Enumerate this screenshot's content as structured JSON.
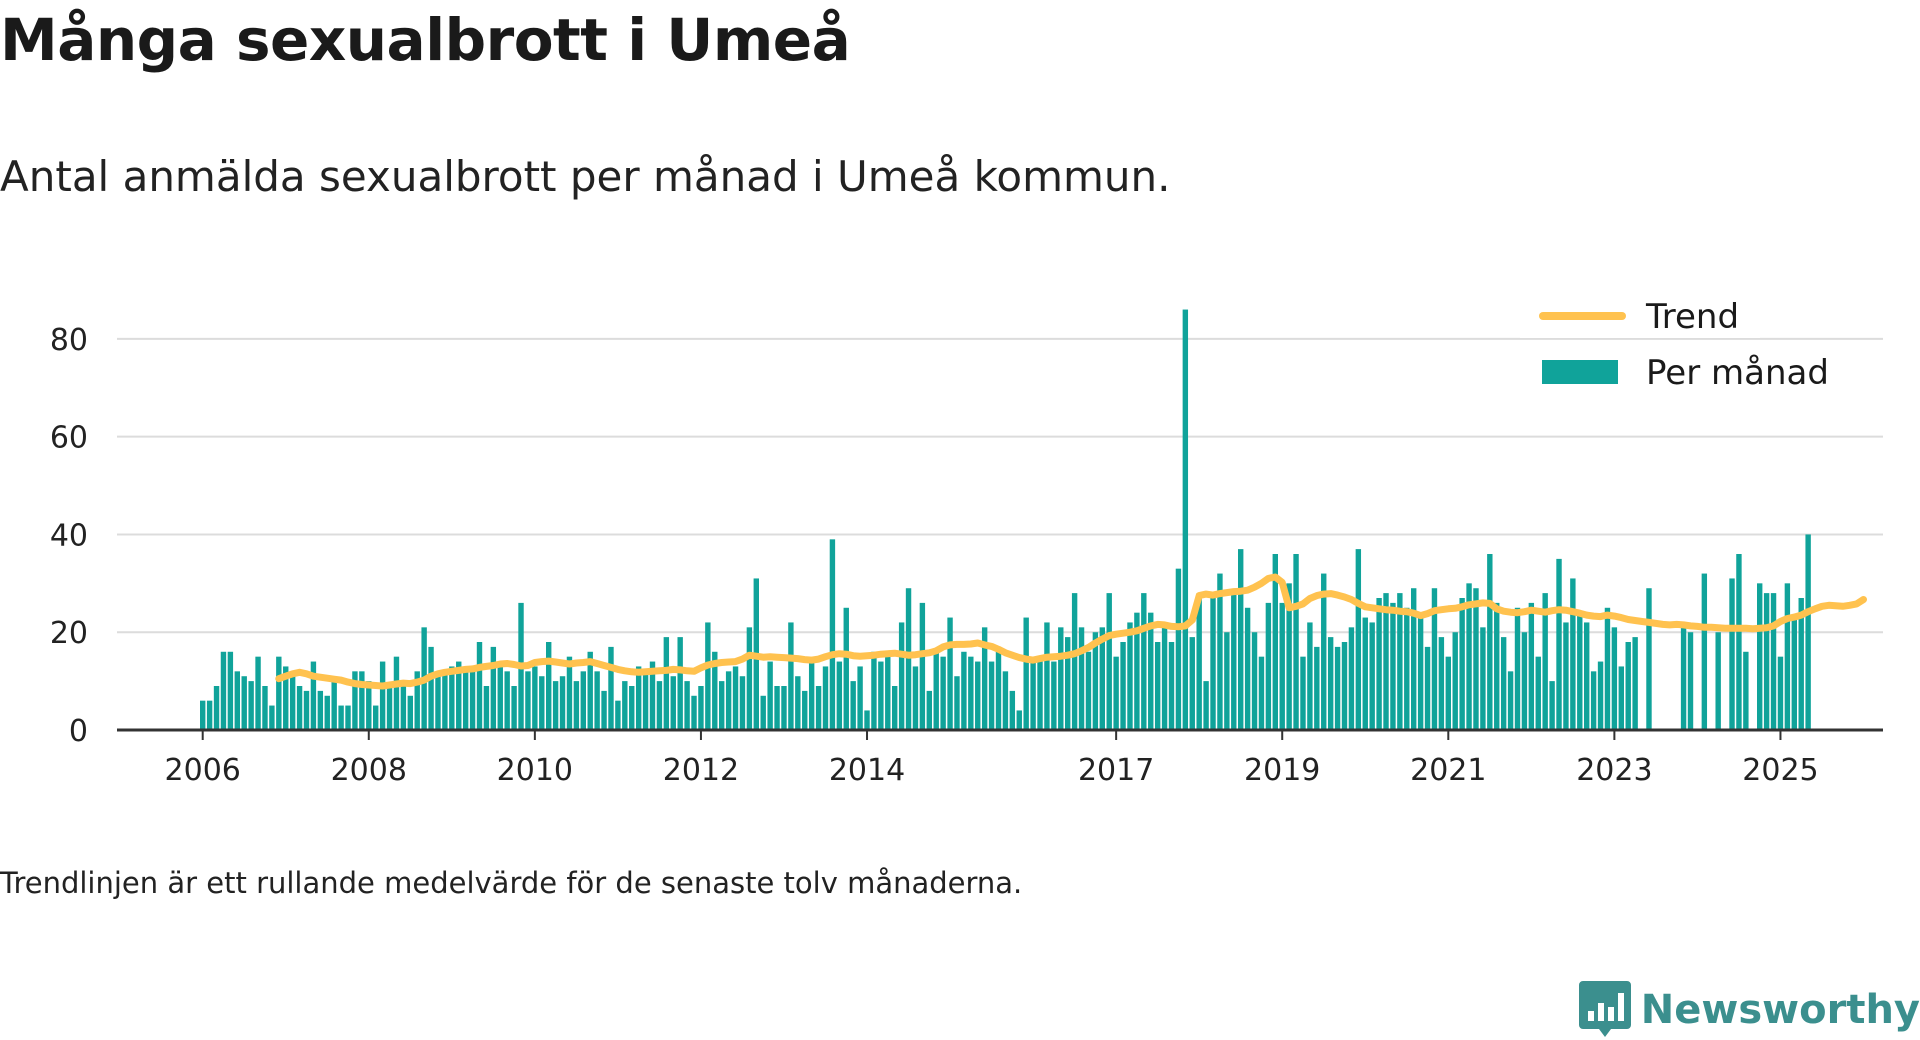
{
  "title": "Många sexualbrott i Umeå",
  "subtitle": "Antal anmälda sexualbrott per månad i Umeå kommun.",
  "note": "Trendlinjen är ett rullande medelvärde för de senaste tolv månaderna.",
  "brand": {
    "name": "Newsworthy",
    "icon": "newsworthy-logo-icon"
  },
  "colors": {
    "bar": "#10a39a",
    "trend": "#ffc24f",
    "grid": "#dcdcdc",
    "axis": "#333333",
    "brand": "#3b8f8e"
  },
  "chart_data": {
    "type": "bar",
    "start": "2006-01",
    "ylim": [
      0,
      90
    ],
    "yticks": [
      0,
      20,
      40,
      60,
      80
    ],
    "xtick_labels": [
      "2006",
      "2008",
      "2010",
      "2012",
      "2014",
      "2017",
      "2019",
      "2021",
      "2023",
      "2025"
    ],
    "xtick_indices": [
      0,
      24,
      48,
      72,
      96,
      132,
      156,
      180,
      204,
      228
    ],
    "grid": true,
    "legend": {
      "placement": "top-right",
      "trend_label": "Trend",
      "bars_label": "Per månad"
    },
    "series": [
      {
        "name": "Per månad",
        "type": "bar",
        "values": [
          6,
          6,
          9,
          16,
          16,
          12,
          11,
          10,
          15,
          9,
          5,
          15,
          13,
          12,
          9,
          8,
          14,
          8,
          7,
          10,
          5,
          5,
          12,
          12,
          10,
          5,
          14,
          9,
          15,
          10,
          7,
          12,
          21,
          17,
          12,
          12,
          13,
          14,
          12,
          13,
          18,
          9,
          17,
          13,
          12,
          9,
          26,
          12,
          13,
          11,
          18,
          10,
          11,
          15,
          10,
          12,
          16,
          12,
          8,
          17,
          6,
          10,
          9,
          13,
          12,
          14,
          10,
          19,
          11,
          19,
          10,
          7,
          9,
          22,
          16,
          10,
          12,
          13,
          11,
          21,
          31,
          7,
          14,
          9,
          9,
          22,
          11,
          8,
          14,
          9,
          13,
          39,
          14,
          25,
          10,
          13,
          4,
          16,
          14,
          15,
          9,
          22,
          29,
          13,
          26,
          8,
          16,
          15,
          23,
          11,
          16,
          15,
          14,
          21,
          14,
          16,
          12,
          8,
          4,
          23,
          15,
          14,
          22,
          14,
          21,
          19,
          28,
          21,
          16,
          20,
          21,
          28,
          15,
          18,
          22,
          24,
          28,
          24,
          18,
          21,
          18,
          33,
          86,
          19,
          28,
          10,
          28,
          32,
          20,
          28,
          37,
          25,
          20,
          15,
          26,
          36,
          26,
          30,
          36,
          15,
          22,
          17,
          32,
          19,
          17,
          18,
          21,
          37,
          23,
          22,
          27,
          28,
          26,
          28,
          25,
          29,
          24,
          17,
          29,
          19,
          15,
          20,
          27,
          30,
          29,
          21,
          36,
          26,
          19,
          12,
          25,
          20,
          26,
          15,
          28,
          10,
          35,
          22,
          31,
          24,
          22,
          12,
          14,
          25,
          21,
          13,
          18,
          19,
          0,
          29,
          0,
          0,
          0,
          0,
          21,
          20,
          0,
          32,
          0,
          20,
          0,
          31,
          36,
          16,
          0,
          30,
          28,
          28,
          15,
          30,
          23,
          27,
          40
        ]
      },
      {
        "name": "Trend",
        "type": "line",
        "start_index": 11,
        "values": [
          10.5,
          11,
          11.5,
          11.8,
          11.5,
          11,
          10.8,
          10.6,
          10.4,
          10.2,
          9.8,
          9.5,
          9.3,
          9.2,
          9.1,
          9,
          9.2,
          9.4,
          9.6,
          9.5,
          9.8,
          10.2,
          11,
          11.5,
          11.8,
          12,
          12.2,
          12.4,
          12.5,
          12.8,
          13,
          13.2,
          13.5,
          13.6,
          13.4,
          13.1,
          13.2,
          13.8,
          14,
          14.1,
          13.9,
          13.7,
          13.5,
          13.7,
          13.8,
          14,
          13.6,
          13.2,
          12.8,
          12.4,
          12.1,
          11.9,
          11.8,
          11.9,
          12,
          12.1,
          12.2,
          12.4,
          12.3,
          12.1,
          12,
          12.7,
          13.3,
          13.6,
          13.8,
          13.9,
          14,
          14.5,
          15.3,
          15.1,
          14.9,
          15,
          14.9,
          14.8,
          14.7,
          14.6,
          14.4,
          14.3,
          14.5,
          15,
          15.4,
          15.6,
          15.5,
          15.2,
          15.1,
          15.2,
          15.3,
          15.5,
          15.6,
          15.7,
          15.5,
          15.3,
          15.4,
          15.6,
          15.8,
          16.2,
          17,
          17.4,
          17.5,
          17.5,
          17.6,
          17.8,
          17.4,
          17.1,
          16.5,
          15.8,
          15.3,
          14.8,
          14.5,
          14.3,
          14.6,
          14.9,
          15,
          15.1,
          15.3,
          15.6,
          16.2,
          16.9,
          17.8,
          18.6,
          19.3,
          19.6,
          19.8,
          20,
          20.3,
          20.8,
          21.3,
          21.6,
          21.5,
          21.2,
          21.1,
          21.3,
          22.5,
          27.5,
          27.8,
          27.6,
          27.9,
          28.1,
          28.3,
          28.4,
          28.6,
          29.2,
          30,
          31,
          31.3,
          30.2,
          25,
          25.3,
          25.8,
          26.9,
          27.5,
          27.8,
          27.9,
          27.6,
          27.2,
          26.7,
          25.9,
          25.2,
          25,
          24.8,
          24.6,
          24.5,
          24.3,
          24.2,
          23.9,
          23.4,
          23.8,
          24.4,
          24.6,
          24.8,
          24.9,
          25.2,
          25.6,
          25.8,
          26,
          25.9,
          24.8,
          24.3,
          24.1,
          24,
          24.2,
          24.5,
          24.3,
          24.1,
          24.4,
          24.6,
          24.5,
          24.2,
          23.9,
          23.5,
          23.3,
          23.2,
          23.5,
          23.3,
          23,
          22.6,
          22.4,
          22.2,
          22.0,
          21.8,
          21.6,
          21.5,
          21.6,
          21.5,
          21.3,
          21.2,
          21.0,
          21.0,
          20.9,
          20.8,
          20.8,
          20.8,
          20.8,
          20.7,
          20.8,
          20.9,
          21.3,
          22.2,
          22.8,
          23.1,
          23.5,
          24.2,
          24.8,
          25.3,
          25.5,
          25.4,
          25.3,
          25.5,
          25.8,
          26.7
        ]
      }
    ]
  }
}
